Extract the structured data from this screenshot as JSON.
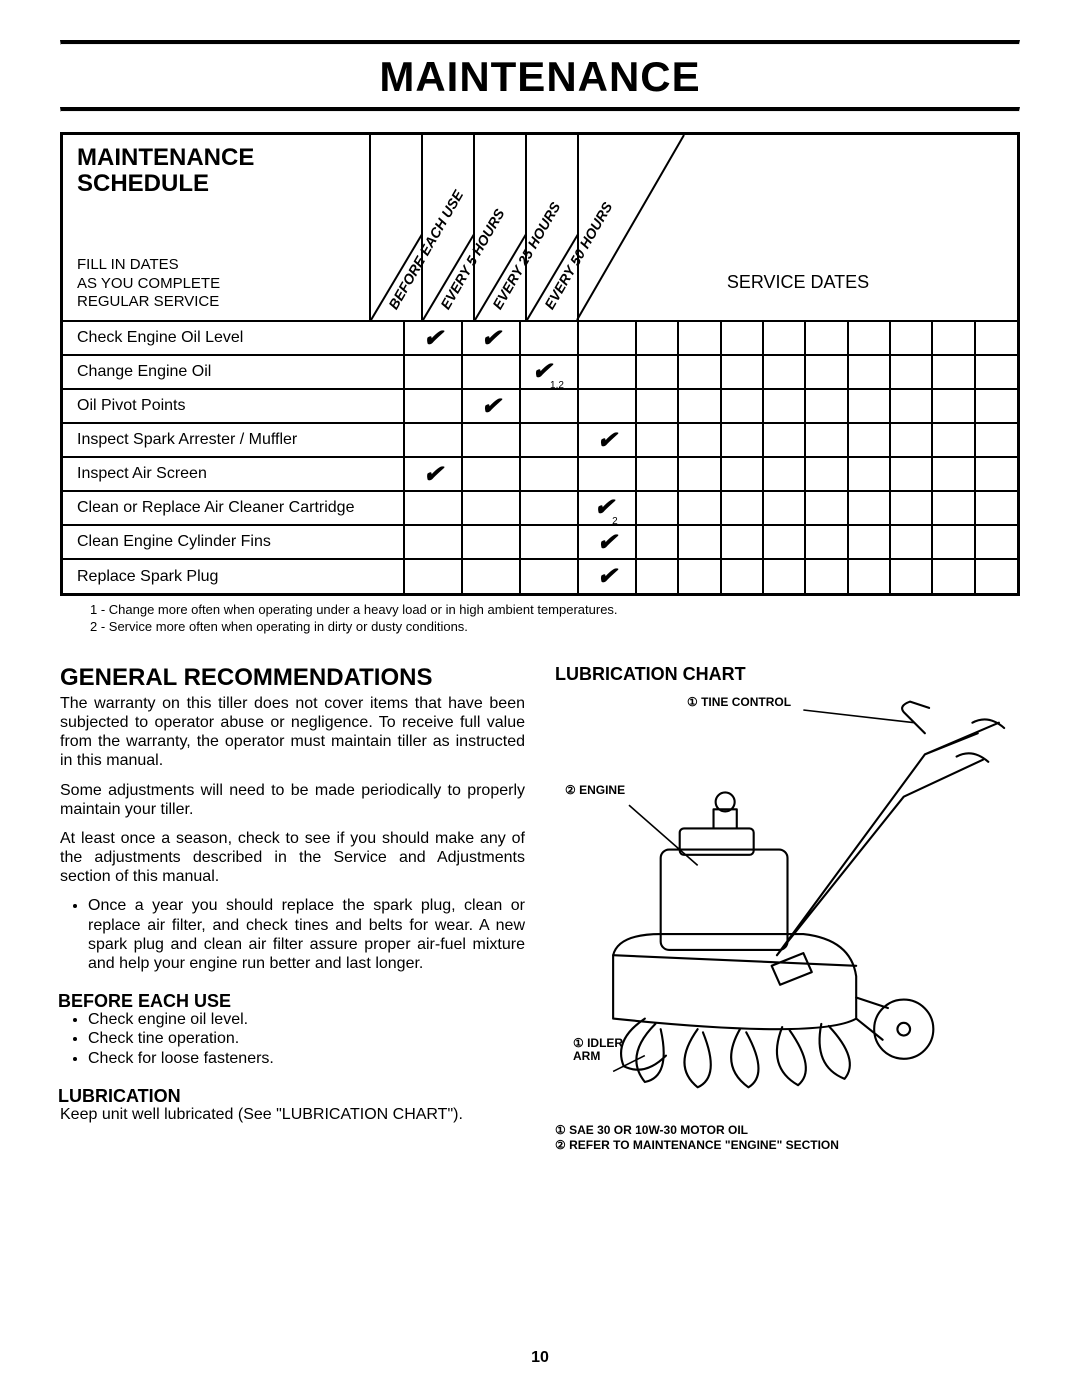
{
  "page": {
    "title": "MAINTENANCE",
    "number": "10"
  },
  "schedule": {
    "title_line1": "MAINTENANCE",
    "title_line2": "SCHEDULE",
    "sub_line1": "FILL IN DATES",
    "sub_line2": "AS YOU COMPLETE",
    "sub_line3": "REGULAR SERVICE",
    "service_dates_label": "SERVICE DATES",
    "interval_cols": [
      "BEFORE EACH USE",
      "EVERY 5 HOURS",
      "EVERY 25 HOURS",
      "EVERY 50 HOURS"
    ],
    "service_date_col_count": 9,
    "rows": [
      {
        "label": "Check Engine Oil Level",
        "checks": [
          "✔",
          "✔",
          "",
          ""
        ]
      },
      {
        "label": "Change Engine Oil",
        "checks": [
          "",
          "",
          "✔",
          ""
        ],
        "sub": [
          "",
          "",
          "1,2",
          ""
        ]
      },
      {
        "label": "Oil Pivot Points",
        "checks": [
          "",
          "✔",
          "",
          ""
        ]
      },
      {
        "label": "Inspect Spark Arrester / Muffler",
        "checks": [
          "",
          "",
          "",
          "✔"
        ]
      },
      {
        "label": "Inspect Air Screen",
        "checks": [
          "✔",
          "",
          "",
          ""
        ]
      },
      {
        "label": "Clean or Replace Air Cleaner Cartridge",
        "checks": [
          "",
          "",
          "",
          "✔"
        ],
        "sub": [
          "",
          "",
          "",
          "2"
        ]
      },
      {
        "label": "Clean Engine Cylinder Fins",
        "checks": [
          "",
          "",
          "",
          "✔"
        ]
      },
      {
        "label": "Replace Spark Plug",
        "checks": [
          "",
          "",
          "",
          "✔"
        ]
      }
    ],
    "footnote1": "1 - Change more often when operating under a heavy load or in high ambient temperatures.",
    "footnote2": "2 - Service more often when operating in dirty or dusty conditions."
  },
  "general": {
    "heading": "GENERAL RECOMMENDATIONS",
    "p1": "The warranty on this tiller does not cover items that  have been subjected to operator abuse or negligence. To receive full value from the warranty, the operator must maintain tiller as instructed in this manual.",
    "p2": "Some adjustments will need to be made periodically to properly maintain your tiller.",
    "p3": "At least once a season, check to see if you should make any of the adjustments described in the Service and Adjustments section of this manual.",
    "bullet1": "Once a year you should replace the spark plug, clean or replace air filter, and check tines and belts for wear. A new spark plug and clean air filter assure proper air-fuel mixture and help your engine run better and last longer.",
    "before_heading": "BEFORE EACH USE",
    "before_b1": "Check engine oil level.",
    "before_b2": "Check tine operation.",
    "before_b3": "Check for loose fasteners.",
    "lub_heading": "LUBRICATION",
    "lub_p": "Keep unit well lubricated (See \"LUBRICATION CHART\")."
  },
  "lubchart": {
    "heading": "LUBRICATION CHART",
    "label_tine": "① TINE CONTROL",
    "label_engine": "② ENGINE",
    "label_idler1": "① IDLER",
    "label_idler2": "ARM",
    "foot1": "① SAE 30 OR 10W-30 MOTOR OIL",
    "foot2": "② REFER TO MAINTENANCE \"ENGINE\" SECTION"
  },
  "style": {
    "check_glyph": "✔",
    "circled1": "①",
    "circled2": "②"
  }
}
